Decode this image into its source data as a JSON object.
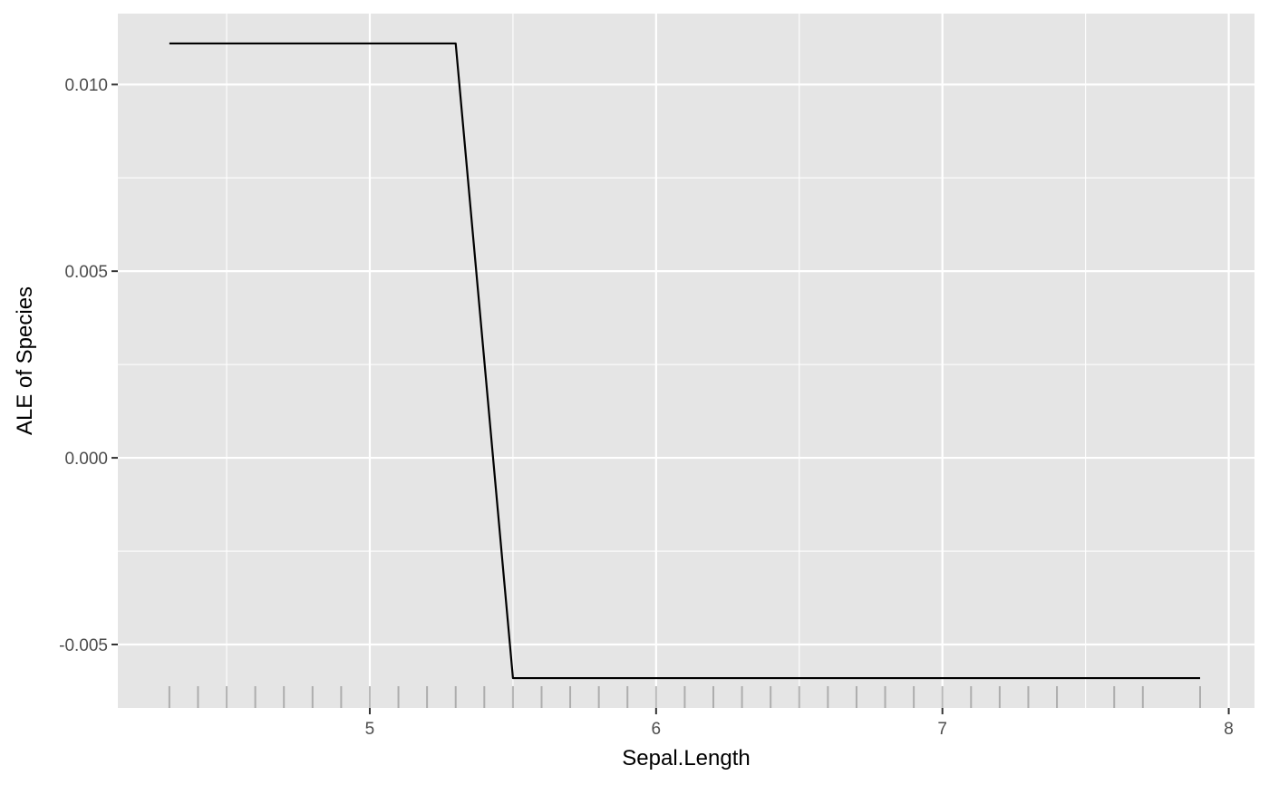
{
  "chart_data": {
    "type": "line",
    "title": "",
    "xlabel": "Sepal.Length",
    "ylabel": "ALE of Species",
    "xlim": [
      4.12,
      8.09
    ],
    "ylim": [
      -0.0067,
      0.0119
    ],
    "x_ticks": [
      5,
      6,
      7,
      8
    ],
    "x_tick_labels": [
      "5",
      "6",
      "7",
      "8"
    ],
    "y_ticks": [
      -0.005,
      0.0,
      0.005,
      0.01
    ],
    "y_tick_labels": [
      "-0.005",
      "0.000",
      "0.005",
      "0.010"
    ],
    "grid": true,
    "series": [
      {
        "x": [
          4.3,
          5.3,
          5.5,
          7.9
        ],
        "y": [
          0.0111,
          0.0111,
          -0.0059,
          -0.0059
        ]
      }
    ],
    "rug": [
      4.3,
      4.4,
      4.5,
      4.6,
      4.7,
      4.8,
      4.9,
      5.0,
      5.1,
      5.2,
      5.3,
      5.4,
      5.5,
      5.6,
      5.7,
      5.8,
      5.9,
      6.0,
      6.1,
      6.2,
      6.3,
      6.4,
      6.5,
      6.6,
      6.7,
      6.8,
      6.9,
      7.0,
      7.1,
      7.2,
      7.3,
      7.4,
      7.6,
      7.7,
      7.9
    ]
  },
  "colors": {
    "panel": "#e5e5e5",
    "grid": "#ffffff",
    "line": "#000000",
    "rug": "#7f7f7f"
  }
}
